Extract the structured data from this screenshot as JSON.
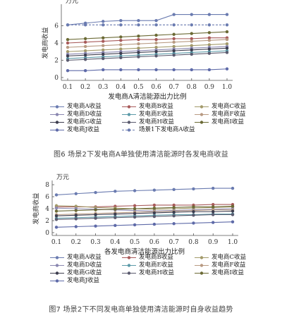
{
  "colors": {
    "A": "#6a7bb0",
    "B": "#a85a5a",
    "C": "#a39a6a",
    "D": "#8a87b0",
    "E": "#5b9aa8",
    "F": "#b89a82",
    "G": "#3d3d4e",
    "H": "#5a5a6e",
    "I": "#6b6a35",
    "J": "#5e6aa8",
    "axis": "#555555",
    "grid": "#bdbdbd"
  },
  "chart_data": [
    {
      "type": "line",
      "unit": "万元",
      "ylabel": "发电商收益",
      "xlabel": "发电商A清洁能源出力比例",
      "x": [
        0.1,
        0.2,
        0.3,
        0.4,
        0.5,
        0.6,
        0.7,
        0.8,
        0.9,
        1.0
      ],
      "xticks": [
        "0.1",
        "0.2",
        "0.3",
        "0.4",
        "0.5",
        "0.6",
        "0.7",
        "0.8",
        "0.9",
        "1.0"
      ],
      "ylim": [
        0,
        8
      ],
      "yticks": [
        "0",
        "2",
        "4",
        "6"
      ],
      "series": [
        {
          "name": "发电商A收益",
          "key": "A",
          "style": "solid",
          "values": [
            6.1,
            6.3,
            6.5,
            6.6,
            6.6,
            6.6,
            7.3,
            7.3,
            7.3,
            7.3
          ]
        },
        {
          "name": "发电商B收益",
          "key": "B",
          "style": "solid",
          "values": [
            4.0,
            4.1,
            4.2,
            4.3,
            4.4,
            4.4,
            4.5,
            4.5,
            4.6,
            4.6
          ]
        },
        {
          "name": "发电商C收益",
          "key": "C",
          "style": "solid",
          "values": [
            3.0,
            3.1,
            3.2,
            3.3,
            3.4,
            3.5,
            3.6,
            3.7,
            3.8,
            3.9
          ]
        },
        {
          "name": "发电商D收益",
          "key": "D",
          "style": "solid",
          "values": [
            2.7,
            2.8,
            2.9,
            3.0,
            3.1,
            3.2,
            3.3,
            3.4,
            3.5,
            3.6
          ]
        },
        {
          "name": "发电商E收益",
          "key": "E",
          "style": "solid",
          "values": [
            2.2,
            2.3,
            2.4,
            2.5,
            2.6,
            2.7,
            2.8,
            2.9,
            3.0,
            3.1
          ]
        },
        {
          "name": "发电商F收益",
          "key": "F",
          "style": "solid",
          "values": [
            3.5,
            3.6,
            3.7,
            3.8,
            3.9,
            4.0,
            4.1,
            4.2,
            4.3,
            4.4
          ]
        },
        {
          "name": "发电商G收益",
          "key": "G",
          "style": "solid",
          "values": [
            2.5,
            2.6,
            2.7,
            2.8,
            2.9,
            3.0,
            3.1,
            3.2,
            3.3,
            3.4
          ]
        },
        {
          "name": "发电商H收益",
          "key": "H",
          "style": "solid",
          "values": [
            2.0,
            2.1,
            2.2,
            2.3,
            2.4,
            2.5,
            2.6,
            2.7,
            2.8,
            2.9
          ]
        },
        {
          "name": "发电商I收益",
          "key": "I",
          "style": "solid",
          "values": [
            4.4,
            4.5,
            4.6,
            4.7,
            4.8,
            4.9,
            5.0,
            5.1,
            5.2,
            5.3
          ]
        },
        {
          "name": "发电商J收益",
          "key": "J",
          "style": "solid",
          "values": [
            0.8,
            0.8,
            0.9,
            0.9,
            0.9,
            0.9,
            0.9,
            0.9,
            0.9,
            1.0
          ]
        },
        {
          "name": "场景1下发电商A收益",
          "key": "A",
          "style": "dashed",
          "values": [
            6.1,
            6.1,
            6.1,
            6.1,
            6.1,
            6.1,
            6.1,
            6.1,
            6.1,
            6.1
          ]
        }
      ],
      "caption": "图6   场景2下发电商A单独使用清洁能源时各发电商收益"
    },
    {
      "type": "line",
      "unit": "万元",
      "ylabel": "发电商收益",
      "xlabel": "各发电商清洁能源出力比例",
      "x": [
        0.1,
        0.2,
        0.3,
        0.4,
        0.5,
        0.6,
        0.7,
        0.8,
        0.9,
        1.0
      ],
      "xticks": [
        "0.1",
        "0.2",
        "0.3",
        "0.4",
        "0.5",
        "0.6",
        "0.7",
        "0.8",
        "0.9",
        "1.0"
      ],
      "ylim": [
        0,
        8
      ],
      "yticks": [
        "0",
        "2",
        "4",
        "6",
        "8"
      ],
      "series": [
        {
          "name": "发电商A收益",
          "key": "A",
          "style": "solid",
          "values": [
            6.3,
            6.5,
            6.7,
            6.9,
            7.0,
            7.1,
            7.2,
            7.3,
            7.4,
            7.4
          ]
        },
        {
          "name": "发电商B收益",
          "key": "B",
          "style": "solid",
          "values": [
            4.3,
            4.3,
            4.3,
            4.4,
            4.5,
            4.6,
            4.6,
            4.6,
            4.7,
            4.7
          ]
        },
        {
          "name": "发电商C收益",
          "key": "C",
          "style": "solid",
          "values": [
            4.5,
            4.4,
            4.2,
            4.1,
            4.0,
            3.9,
            4.0,
            4.1,
            4.2,
            4.3
          ]
        },
        {
          "name": "发电商D收益",
          "key": "D",
          "style": "solid",
          "values": [
            4.1,
            4.0,
            3.9,
            3.8,
            3.7,
            3.6,
            3.7,
            3.8,
            3.9,
            4.0
          ]
        },
        {
          "name": "发电商E收益",
          "key": "E",
          "style": "solid",
          "values": [
            2.4,
            2.5,
            2.6,
            2.7,
            2.8,
            2.9,
            3.0,
            3.0,
            3.1,
            3.1
          ]
        },
        {
          "name": "发电商F收益",
          "key": "F",
          "style": "solid",
          "values": [
            3.0,
            3.1,
            3.2,
            3.3,
            3.4,
            3.5,
            3.6,
            3.7,
            3.8,
            3.8
          ]
        },
        {
          "name": "发电商G收益",
          "key": "G",
          "style": "solid",
          "values": [
            2.8,
            2.9,
            3.0,
            3.1,
            3.2,
            3.3,
            3.4,
            3.5,
            3.5,
            3.6
          ]
        },
        {
          "name": "发电商H收益",
          "key": "H",
          "style": "solid",
          "values": [
            2.2,
            2.3,
            2.4,
            2.5,
            2.6,
            2.7,
            2.8,
            2.9,
            3.0,
            3.0
          ]
        },
        {
          "name": "发电商I收益",
          "key": "I",
          "style": "solid",
          "values": [
            3.6,
            3.7,
            3.8,
            3.9,
            4.0,
            4.1,
            4.2,
            4.3,
            4.3,
            4.4
          ]
        },
        {
          "name": "发电商J收益",
          "key": "J",
          "style": "solid",
          "values": [
            0.9,
            1.0,
            1.1,
            1.2,
            1.3,
            1.4,
            1.5,
            1.6,
            1.7,
            1.8
          ]
        }
      ],
      "caption": "图7   场景2下不同发电商单独使用清洁能源时自身收益趋势"
    }
  ]
}
